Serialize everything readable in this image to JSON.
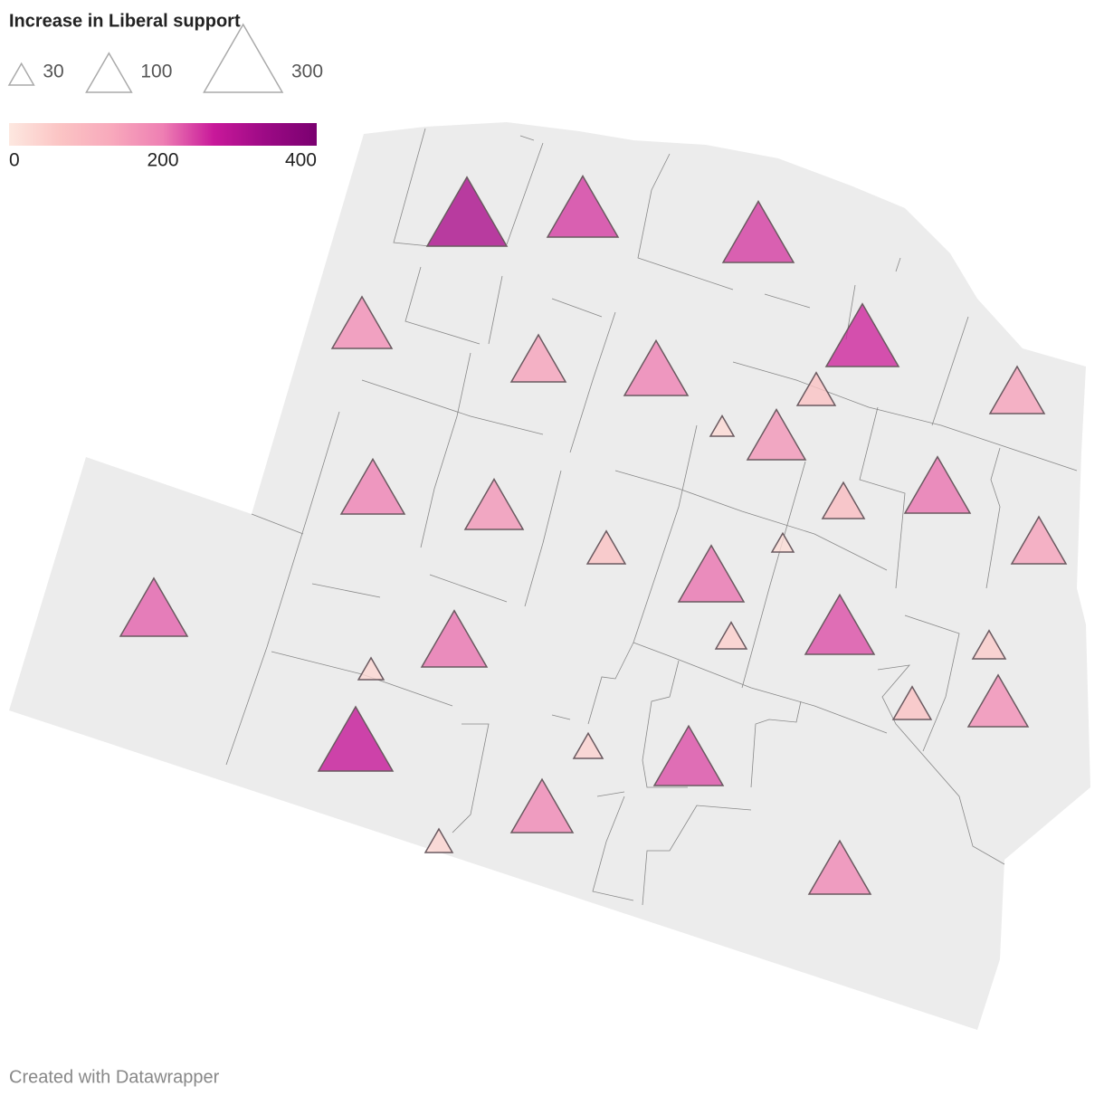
{
  "legend": {
    "title": "Increase in Liberal support",
    "size_values": [
      30,
      100,
      300
    ],
    "color_ticks": [
      0,
      200,
      400
    ],
    "color_lim": [
      0,
      400
    ],
    "colors": [
      "#fde8e0",
      "#fbc4c4",
      "#f8a9bc",
      "#ee7fb3",
      "#c8189a",
      "#9c0a85",
      "#7a0070"
    ]
  },
  "markers": {
    "values": [
      310,
      243,
      243,
      174,
      144,
      196,
      256,
      70,
      27,
      164,
      144,
      196,
      164,
      70,
      85,
      207,
      23,
      144,
      219,
      207,
      207,
      231,
      46,
      31,
      52,
      269,
      41,
      231,
      70,
      174,
      185,
      36,
      185
    ]
  },
  "footer": "Created with Datawrapper"
}
